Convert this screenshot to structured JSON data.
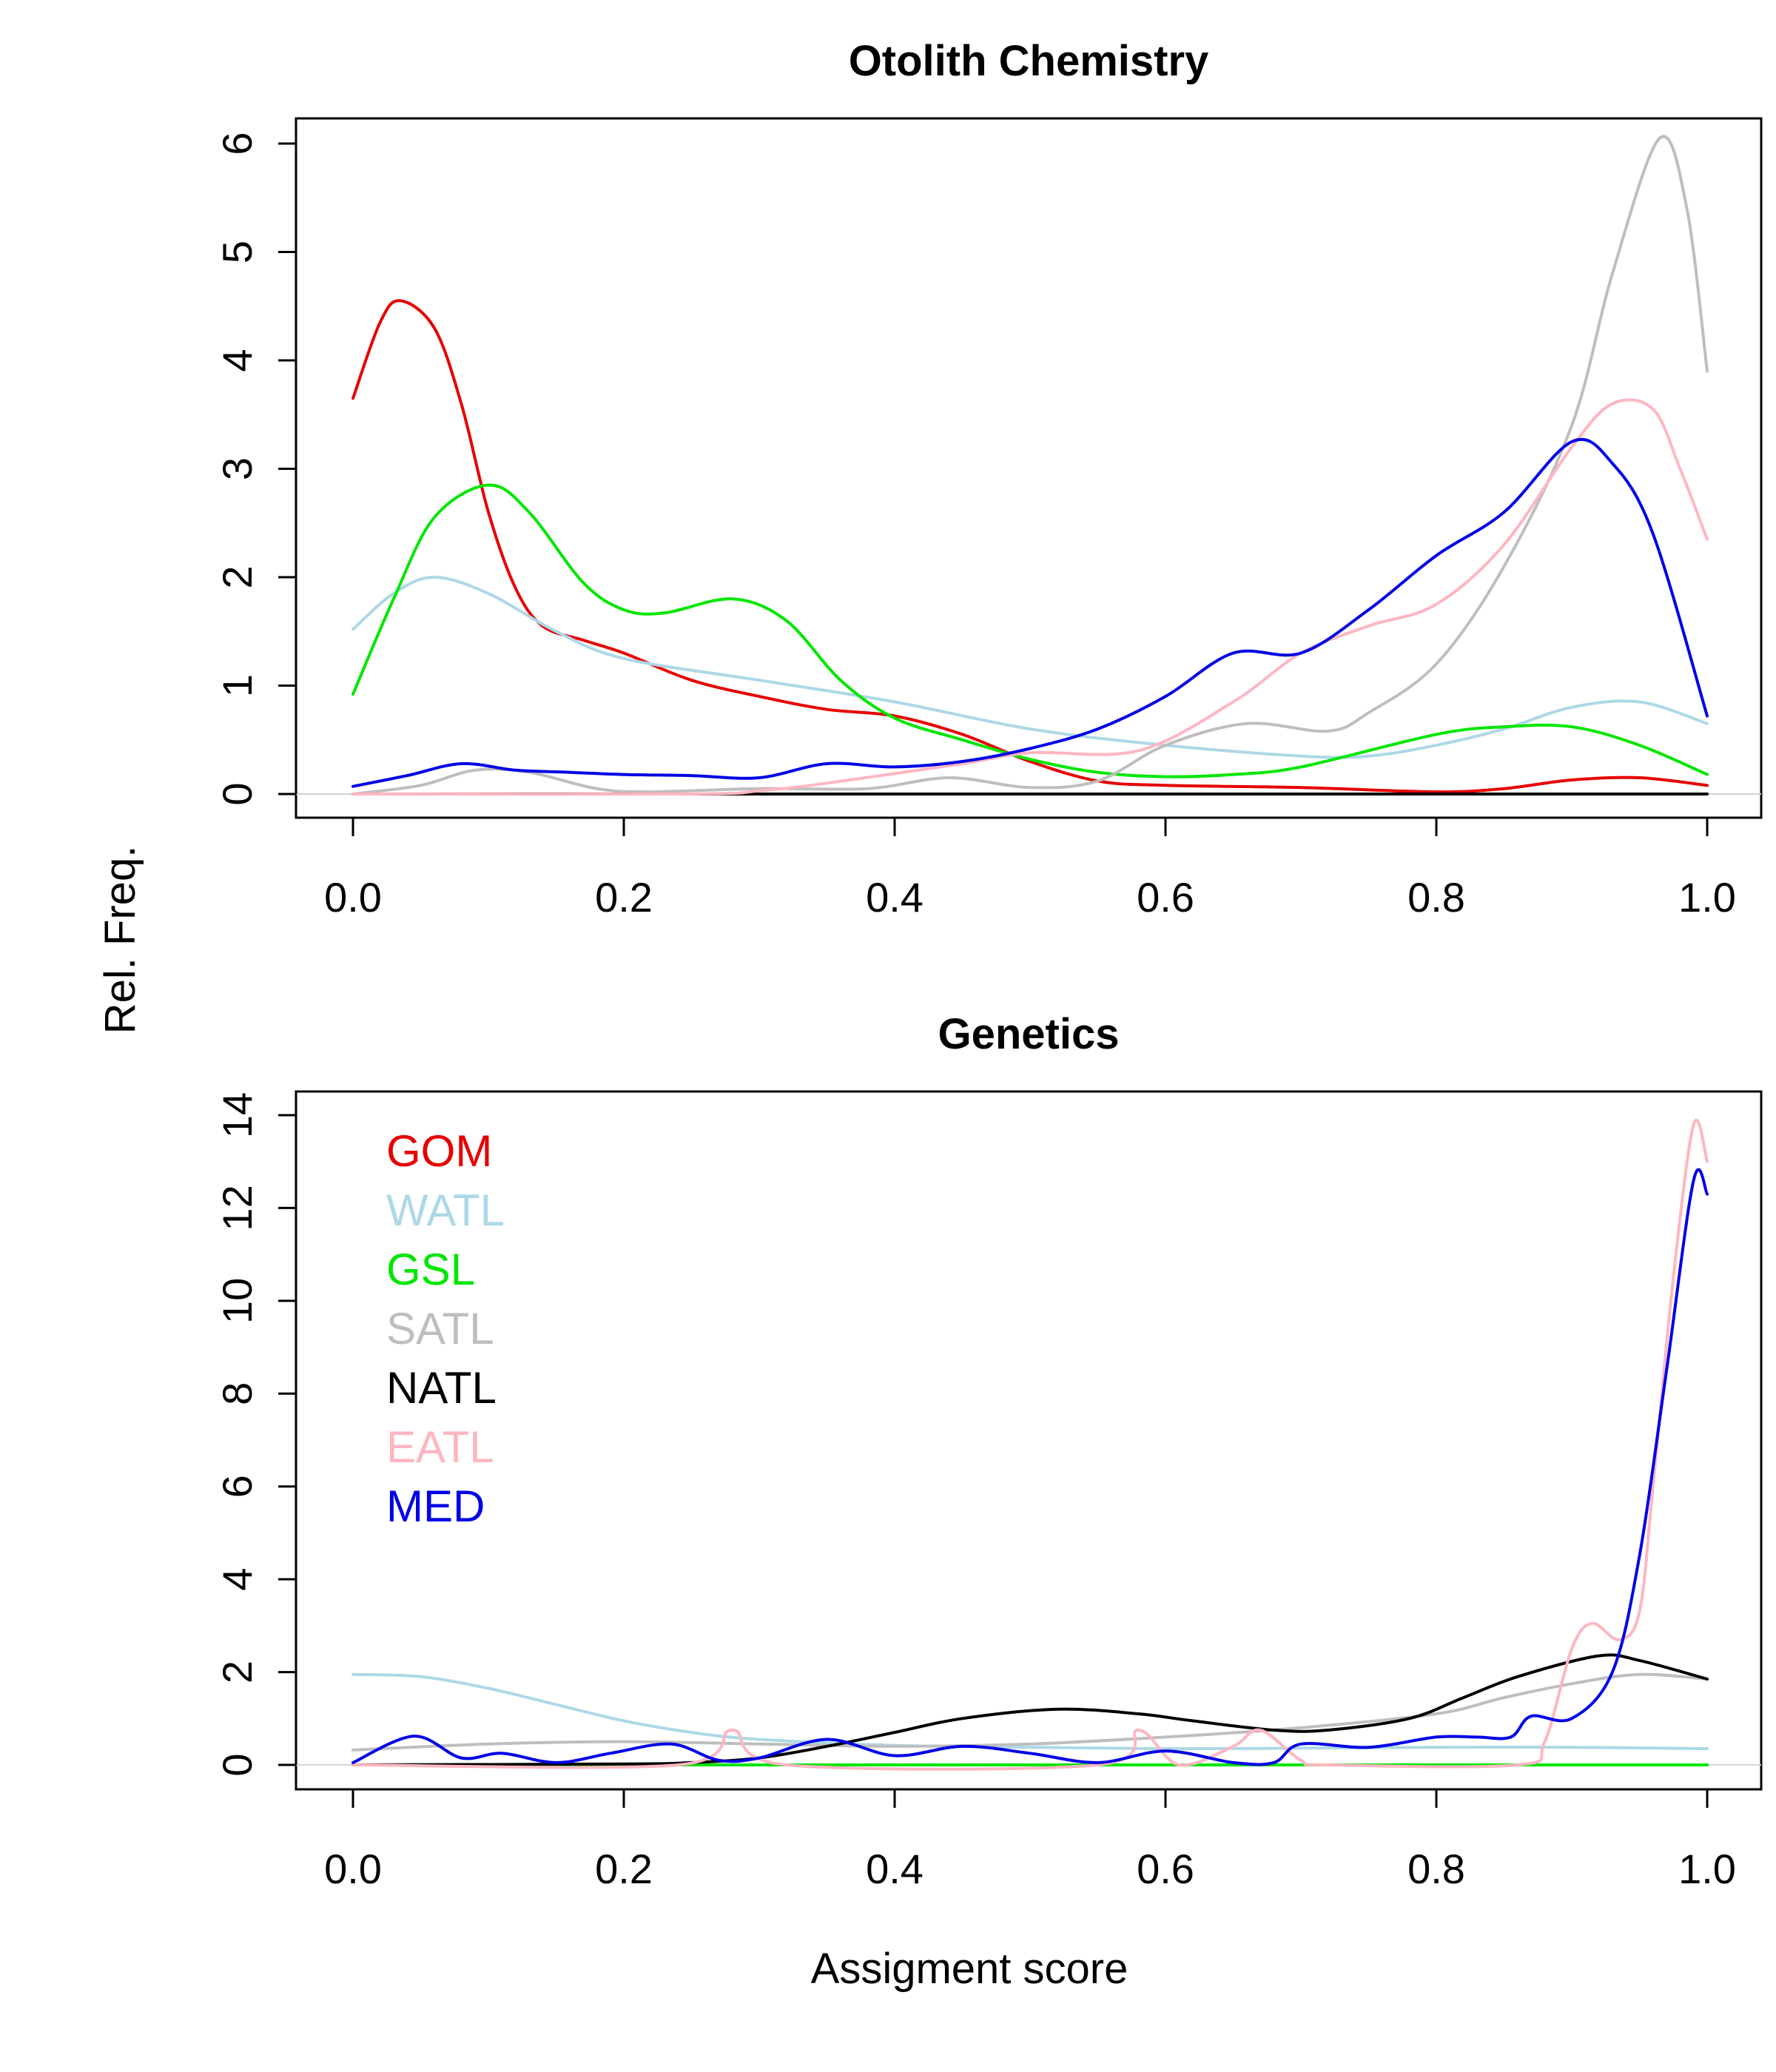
{
  "figure": {
    "ylabel": "Rel. Freq.",
    "xlabel": "Assigment score"
  },
  "chart_data": [
    {
      "type": "line",
      "title": "Otolith Chemistry",
      "xlim": [
        0,
        1
      ],
      "ylim": [
        0,
        6
      ],
      "x_ticks": [
        "0.0",
        "0.2",
        "0.4",
        "0.6",
        "0.8",
        "1.0"
      ],
      "y_ticks": [
        "0",
        "1",
        "2",
        "3",
        "4",
        "5",
        "6"
      ],
      "series": [
        {
          "name": "GOM",
          "color": "#e60000",
          "x": [
            0,
            0.02,
            0.035,
            0.06,
            0.08,
            0.1,
            0.12,
            0.14,
            0.17,
            0.2,
            0.25,
            0.3,
            0.35,
            0.4,
            0.45,
            0.5,
            0.55,
            0.6,
            0.7,
            0.8,
            0.85,
            0.9,
            0.95,
            1.0
          ],
          "y": [
            3.65,
            4.35,
            4.55,
            4.3,
            3.6,
            2.6,
            1.9,
            1.55,
            1.42,
            1.3,
            1.05,
            0.9,
            0.78,
            0.72,
            0.55,
            0.3,
            0.12,
            0.08,
            0.06,
            0.02,
            0.05,
            0.13,
            0.15,
            0.08
          ]
        },
        {
          "name": "WATL",
          "color": "#add8e6",
          "x": [
            0,
            0.03,
            0.06,
            0.1,
            0.15,
            0.2,
            0.3,
            0.4,
            0.5,
            0.6,
            0.7,
            0.75,
            0.8,
            0.85,
            0.9,
            0.95,
            1.0
          ],
          "y": [
            1.52,
            1.85,
            2.0,
            1.85,
            1.5,
            1.25,
            1.05,
            0.85,
            0.6,
            0.45,
            0.35,
            0.35,
            0.45,
            0.6,
            0.8,
            0.85,
            0.65
          ]
        },
        {
          "name": "GSL",
          "color": "#00e600",
          "x": [
            0,
            0.03,
            0.06,
            0.1,
            0.13,
            0.17,
            0.2,
            0.23,
            0.28,
            0.32,
            0.36,
            0.4,
            0.45,
            0.5,
            0.55,
            0.6,
            0.65,
            0.7,
            0.8,
            0.85,
            0.9,
            0.95,
            1.0
          ],
          "y": [
            0.92,
            1.8,
            2.55,
            2.85,
            2.6,
            1.95,
            1.7,
            1.67,
            1.8,
            1.6,
            1.05,
            0.7,
            0.5,
            0.32,
            0.2,
            0.16,
            0.18,
            0.25,
            0.55,
            0.62,
            0.62,
            0.45,
            0.18
          ]
        },
        {
          "name": "SATL",
          "color": "#bebebe",
          "x": [
            0,
            0.05,
            0.09,
            0.13,
            0.18,
            0.22,
            0.3,
            0.38,
            0.44,
            0.5,
            0.55,
            0.6,
            0.66,
            0.72,
            0.75,
            0.8,
            0.85,
            0.9,
            0.93,
            0.965,
            0.985,
            1.0
          ],
          "y": [
            0,
            0.08,
            0.22,
            0.2,
            0.05,
            0.02,
            0.05,
            0.05,
            0.15,
            0.06,
            0.12,
            0.45,
            0.65,
            0.58,
            0.75,
            1.2,
            2.1,
            3.4,
            4.8,
            6.05,
            5.4,
            3.9
          ]
        },
        {
          "name": "NATL",
          "color": "#000000",
          "x": [
            0,
            0.2,
            0.4,
            0.6,
            0.8,
            1.0
          ],
          "y": [
            0,
            0,
            0,
            0,
            0,
            0
          ]
        },
        {
          "name": "EATL",
          "color": "#ffb6c1",
          "x": [
            0,
            0.25,
            0.3,
            0.35,
            0.45,
            0.5,
            0.58,
            0.65,
            0.7,
            0.75,
            0.8,
            0.85,
            0.9,
            0.93,
            0.96,
            0.98,
            1.0
          ],
          "y": [
            0,
            0,
            0.03,
            0.1,
            0.28,
            0.38,
            0.4,
            0.85,
            1.3,
            1.55,
            1.75,
            2.3,
            3.2,
            3.6,
            3.55,
            3.0,
            2.35
          ]
        },
        {
          "name": "MED",
          "color": "#0000e6",
          "x": [
            0,
            0.04,
            0.08,
            0.12,
            0.16,
            0.2,
            0.25,
            0.3,
            0.35,
            0.4,
            0.45,
            0.5,
            0.55,
            0.6,
            0.65,
            0.7,
            0.75,
            0.8,
            0.85,
            0.9,
            0.93,
            0.96,
            1.0
          ],
          "y": [
            0.07,
            0.17,
            0.28,
            0.22,
            0.2,
            0.18,
            0.17,
            0.15,
            0.28,
            0.25,
            0.3,
            0.42,
            0.6,
            0.9,
            1.3,
            1.3,
            1.7,
            2.2,
            2.6,
            3.25,
            3.05,
            2.4,
            0.72
          ]
        }
      ]
    },
    {
      "type": "line",
      "title": "Genetics",
      "xlim": [
        0,
        1
      ],
      "ylim": [
        0,
        14
      ],
      "x_ticks": [
        "0.0",
        "0.2",
        "0.4",
        "0.6",
        "0.8",
        "1.0"
      ],
      "y_ticks": [
        "0",
        "2",
        "4",
        "6",
        "8",
        "10",
        "12",
        "14"
      ],
      "legend_position": "top-left",
      "series": [
        {
          "name": "GOM",
          "color": "#e60000",
          "x": [
            0,
            0.2,
            0.4,
            0.6,
            0.8,
            1.0
          ],
          "y": [
            0,
            0,
            0,
            0,
            0,
            0
          ]
        },
        {
          "name": "WATL",
          "color": "#add8e6",
          "x": [
            0,
            0.05,
            0.1,
            0.15,
            0.2,
            0.25,
            0.3,
            0.4,
            0.5,
            0.6,
            0.7,
            0.8,
            0.9,
            1.0
          ],
          "y": [
            1.95,
            1.9,
            1.65,
            1.3,
            0.95,
            0.7,
            0.55,
            0.42,
            0.38,
            0.35,
            0.36,
            0.38,
            0.38,
            0.35
          ]
        },
        {
          "name": "GSL",
          "color": "#00e600",
          "x": [
            0,
            0.2,
            0.4,
            0.6,
            0.8,
            1.0
          ],
          "y": [
            0,
            0,
            0,
            0,
            0,
            0
          ]
        },
        {
          "name": "SATL",
          "color": "#bebebe",
          "x": [
            0,
            0.1,
            0.2,
            0.3,
            0.4,
            0.5,
            0.6,
            0.7,
            0.8,
            0.85,
            0.9,
            0.95,
            1.0
          ],
          "y": [
            0.32,
            0.45,
            0.5,
            0.45,
            0.4,
            0.45,
            0.6,
            0.8,
            1.1,
            1.45,
            1.75,
            1.95,
            1.85
          ]
        },
        {
          "name": "NATL",
          "color": "#000000",
          "x": [
            0,
            0.2,
            0.25,
            0.3,
            0.35,
            0.4,
            0.45,
            0.52,
            0.58,
            0.62,
            0.68,
            0.72,
            0.78,
            0.82,
            0.86,
            0.92,
            0.95,
            1.0
          ],
          "y": [
            0,
            0.02,
            0.05,
            0.15,
            0.4,
            0.7,
            1.0,
            1.2,
            1.1,
            0.95,
            0.75,
            0.75,
            1.0,
            1.45,
            1.9,
            2.35,
            2.25,
            1.85
          ]
        },
        {
          "name": "EATL",
          "color": "#ffb6c1",
          "x": [
            0,
            0.24,
            0.28,
            0.32,
            0.55,
            0.58,
            0.61,
            0.65,
            0.67,
            0.7,
            0.72,
            0.86,
            0.88,
            0.9,
            0.915,
            0.935,
            0.95,
            0.96,
            0.975,
            0.99,
            1.0
          ],
          "y": [
            0,
            0,
            0.75,
            0,
            0,
            0.75,
            0,
            0.4,
            0.75,
            0.1,
            0,
            0,
            0.5,
            2.5,
            3.05,
            2.7,
            3.3,
            6.0,
            10.5,
            13.8,
            13.0
          ]
        },
        {
          "name": "MED",
          "color": "#0000e6",
          "x": [
            0,
            0.045,
            0.08,
            0.11,
            0.15,
            0.19,
            0.235,
            0.27,
            0.3,
            0.35,
            0.4,
            0.45,
            0.5,
            0.55,
            0.6,
            0.65,
            0.68,
            0.7,
            0.75,
            0.8,
            0.83,
            0.855,
            0.87,
            0.9,
            0.93,
            0.95,
            0.97,
            0.99,
            1.0
          ],
          "y": [
            0.05,
            0.62,
            0.15,
            0.25,
            0.05,
            0.25,
            0.45,
            0.1,
            0.15,
            0.55,
            0.2,
            0.4,
            0.25,
            0.05,
            0.3,
            0.05,
            0.05,
            0.45,
            0.38,
            0.6,
            0.6,
            0.6,
            1.05,
            1.0,
            2.0,
            4.5,
            8.5,
            12.6,
            12.3
          ]
        }
      ]
    }
  ]
}
